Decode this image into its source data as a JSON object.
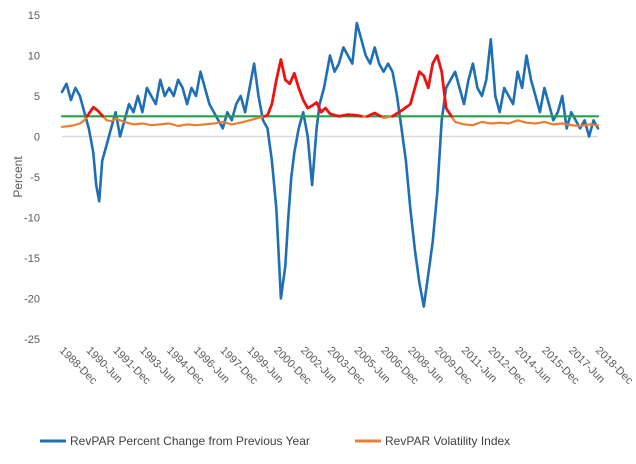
{
  "chart_data": {
    "type": "line",
    "title": "",
    "ylabel": "Percent",
    "xlabel": "",
    "ylim": [
      -25,
      15
    ],
    "yticks": [
      -25,
      -20,
      -15,
      -10,
      -5,
      0,
      5,
      10,
      15
    ],
    "x_tick_labels": [
      "1988-Dec",
      "1990-Jun",
      "1991-Dec",
      "1993-Jun",
      "1994-Dec",
      "1996-Jun",
      "1997-Dec",
      "1999-Jun",
      "2000-Dec",
      "2002-Jun",
      "2003-Dec",
      "2005-Jun",
      "2006-Dec",
      "2008-Jun",
      "2009-Dec",
      "2011-Jun",
      "2012-Dec",
      "2014-Jun",
      "2015-Dec",
      "2017-Jun",
      "2018-Dec"
    ],
    "x_range": [
      "1988-12",
      "2018-12"
    ],
    "grid": false,
    "legend_position": "bottom",
    "colors": {
      "revpar": "#1f6fb5",
      "volatility": "#ed7d31",
      "volatility_high": "#ee1111",
      "threshold": "#22a34a",
      "zero_line": "#d9d9d9"
    },
    "series": [
      {
        "name": "RevPAR Percent Change from Previous Year",
        "color": "#1f6fb5",
        "x": [
          "1988-12",
          "1989-03",
          "1989-06",
          "1989-09",
          "1989-12",
          "1990-03",
          "1990-06",
          "1990-09",
          "1990-11",
          "1991-01",
          "1991-03",
          "1991-06",
          "1991-09",
          "1991-12",
          "1992-03",
          "1992-06",
          "1992-09",
          "1992-12",
          "1993-03",
          "1993-06",
          "1993-09",
          "1993-12",
          "1994-03",
          "1994-06",
          "1994-09",
          "1994-12",
          "1995-03",
          "1995-06",
          "1995-09",
          "1995-12",
          "1996-03",
          "1996-06",
          "1996-09",
          "1996-12",
          "1997-03",
          "1997-06",
          "1997-09",
          "1997-12",
          "1998-03",
          "1998-06",
          "1998-09",
          "1998-12",
          "1999-03",
          "1999-06",
          "1999-09",
          "1999-12",
          "2000-03",
          "2000-06",
          "2000-09",
          "2000-12",
          "2001-03",
          "2001-06",
          "2001-08",
          "2001-10",
          "2001-12",
          "2002-03",
          "2002-06",
          "2002-09",
          "2002-12",
          "2003-03",
          "2003-05",
          "2003-08",
          "2003-12",
          "2004-03",
          "2004-06",
          "2004-09",
          "2004-12",
          "2005-03",
          "2005-06",
          "2005-09",
          "2005-12",
          "2006-03",
          "2006-06",
          "2006-09",
          "2006-12",
          "2007-03",
          "2007-06",
          "2007-09",
          "2007-12",
          "2008-03",
          "2008-06",
          "2008-09",
          "2008-12",
          "2009-03",
          "2009-06",
          "2009-09",
          "2009-12",
          "2010-03",
          "2010-06",
          "2010-09",
          "2010-12",
          "2011-03",
          "2011-06",
          "2011-09",
          "2011-12",
          "2012-03",
          "2012-06",
          "2012-09",
          "2012-12",
          "2013-03",
          "2013-06",
          "2013-09",
          "2013-12",
          "2014-03",
          "2014-06",
          "2014-09",
          "2014-12",
          "2015-03",
          "2015-06",
          "2015-09",
          "2015-12",
          "2016-03",
          "2016-06",
          "2016-09",
          "2016-12",
          "2017-03",
          "2017-06",
          "2017-09",
          "2017-12",
          "2018-03",
          "2018-06",
          "2018-09",
          "2018-12"
        ],
        "values": [
          5.5,
          6.5,
          4.5,
          6,
          5,
          3,
          1,
          -2,
          -6,
          -8,
          -3,
          -1,
          1,
          3,
          0,
          2,
          4,
          3,
          5,
          3,
          6,
          5,
          4,
          7,
          5,
          6,
          5,
          7,
          6,
          4,
          6,
          5,
          8,
          6,
          4,
          3,
          2,
          1,
          3,
          2,
          4,
          5,
          3,
          6,
          9,
          5,
          2,
          1,
          -3,
          -9,
          -20,
          -16,
          -10,
          -5,
          -2,
          1,
          3,
          0,
          -6,
          1,
          4,
          6,
          10,
          8,
          9,
          11,
          10,
          9,
          14,
          12,
          10,
          9,
          11,
          9,
          8,
          9,
          8,
          5,
          1,
          -3,
          -9,
          -14,
          -18,
          -21,
          -17,
          -13,
          -7,
          2,
          6,
          7,
          8,
          6,
          4,
          7,
          9,
          6,
          5,
          7,
          12,
          5,
          3,
          6,
          5,
          4,
          8,
          6,
          10,
          7,
          5,
          3,
          6,
          4,
          2,
          3,
          5,
          1,
          3,
          2,
          1,
          2,
          0,
          2,
          1
        ]
      },
      {
        "name": "RevPAR Volatility Index",
        "color": "#ed7d31",
        "x": [
          "1988-12",
          "1989-06",
          "1989-12",
          "1990-03",
          "1990-06",
          "1990-09",
          "1990-12",
          "1991-03",
          "1991-06",
          "1991-09",
          "1991-12",
          "1992-06",
          "1992-12",
          "1993-06",
          "1993-12",
          "1994-06",
          "1994-12",
          "1995-06",
          "1995-12",
          "1996-06",
          "1996-12",
          "1997-06",
          "1997-12",
          "1998-06",
          "1998-12",
          "1999-06",
          "1999-12",
          "2000-06",
          "2000-09",
          "2000-12",
          "2001-03",
          "2001-06",
          "2001-09",
          "2001-12",
          "2002-03",
          "2002-06",
          "2002-09",
          "2002-12",
          "2003-03",
          "2003-06",
          "2003-09",
          "2003-12",
          "2004-06",
          "2004-12",
          "2005-06",
          "2005-12",
          "2006-06",
          "2006-12",
          "2007-06",
          "2007-12",
          "2008-06",
          "2008-09",
          "2008-12",
          "2009-03",
          "2009-06",
          "2009-09",
          "2009-12",
          "2010-03",
          "2010-06",
          "2010-12",
          "2011-06",
          "2011-12",
          "2012-06",
          "2012-12",
          "2013-06",
          "2013-12",
          "2014-06",
          "2014-12",
          "2015-06",
          "2015-12",
          "2016-06",
          "2016-12",
          "2017-06",
          "2017-12",
          "2018-06",
          "2018-12"
        ],
        "values": [
          1.2,
          1.3,
          1.6,
          2.0,
          2.8,
          3.6,
          3.2,
          2.6,
          2.0,
          1.9,
          2.2,
          1.8,
          1.5,
          1.6,
          1.4,
          1.5,
          1.6,
          1.3,
          1.5,
          1.4,
          1.5,
          1.6,
          1.8,
          1.5,
          1.7,
          2.0,
          2.3,
          2.6,
          4.0,
          7.0,
          9.5,
          7.0,
          6.5,
          7.8,
          6.0,
          4.5,
          3.5,
          3.8,
          4.2,
          3.0,
          3.5,
          2.8,
          2.5,
          2.7,
          2.6,
          2.4,
          2.9,
          2.3,
          2.5,
          3.2,
          4.0,
          6.0,
          8.0,
          7.5,
          6.0,
          9.0,
          10.0,
          8.0,
          3.5,
          1.8,
          1.5,
          1.4,
          1.8,
          1.6,
          1.7,
          1.6,
          2.0,
          1.7,
          1.6,
          1.8,
          1.5,
          1.6,
          1.4,
          1.3,
          1.5,
          1.4
        ]
      },
      {
        "name": "",
        "color": "#22a34a",
        "x": [
          "1988-12",
          "2018-12"
        ],
        "values": [
          2.5,
          2.5
        ]
      }
    ],
    "highlight": {
      "series": 1,
      "above": 2.5,
      "color": "#ee1111"
    }
  }
}
